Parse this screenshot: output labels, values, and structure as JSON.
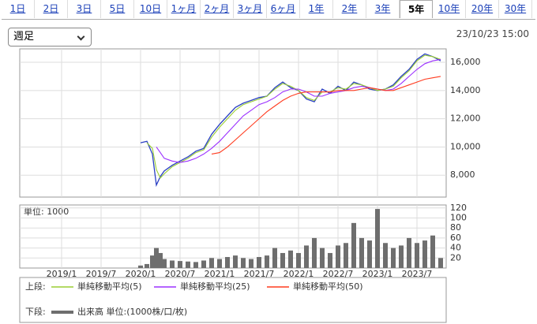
{
  "tabs": [
    "1日",
    "2日",
    "3日",
    "5日",
    "10日",
    "1ヶ月",
    "2ヶ月",
    "3ヶ月",
    "6ヶ月",
    "1年",
    "2年",
    "3年",
    "5年",
    "10年",
    "20年",
    "30年"
  ],
  "selected_tab": 12,
  "dropdown": "週足",
  "timestamp": "23/10/23 15:00",
  "legend": {
    "upper": "上段:",
    "lower": "下段:"
  },
  "chart_data": [
    {
      "type": "line",
      "x": [
        2020.0,
        2020.08,
        2020.15,
        2020.2,
        2020.25,
        2020.3,
        2020.4,
        2020.5,
        2020.6,
        2020.7,
        2020.8,
        2020.9,
        2021.0,
        2021.1,
        2021.2,
        2021.3,
        2021.4,
        2021.5,
        2021.6,
        2021.7,
        2021.8,
        2021.9,
        2022.0,
        2022.1,
        2022.2,
        2022.3,
        2022.4,
        2022.5,
        2022.6,
        2022.7,
        2022.8,
        2022.9,
        2023.0,
        2023.1,
        2023.2,
        2023.3,
        2023.4,
        2023.5,
        2023.6,
        2023.7,
        2023.8
      ],
      "series": [
        {
          "color": "#2a3fc4",
          "values": [
            10300,
            10400,
            9500,
            7300,
            7900,
            8300,
            8700,
            9000,
            9300,
            9700,
            9900,
            10900,
            11600,
            12200,
            12800,
            13100,
            13300,
            13500,
            13600,
            14200,
            14600,
            14200,
            14000,
            13400,
            13200,
            14100,
            13800,
            14300,
            14000,
            14600,
            14400,
            14100,
            14000,
            14100,
            14400,
            15000,
            15500,
            16200,
            16600,
            16400,
            16100
          ]
        },
        {
          "name": "単純移動平均(5)",
          "color": "#9acd32",
          "values": [
            null,
            10300,
            9900,
            8400,
            7800,
            8100,
            8600,
            8900,
            9200,
            9600,
            9800,
            10700,
            11400,
            12000,
            12600,
            13000,
            13200,
            13400,
            13600,
            14100,
            14500,
            14300,
            14000,
            13500,
            13300,
            13900,
            13900,
            14200,
            14100,
            14500,
            14400,
            14200,
            14000,
            14100,
            14300,
            14900,
            15400,
            16100,
            16500,
            16400,
            16200
          ]
        },
        {
          "name": "単純移動平均(25)",
          "color": "#9b30ff",
          "values": [
            null,
            null,
            null,
            10000,
            9600,
            9200,
            9000,
            8900,
            9000,
            9200,
            9500,
            9900,
            10400,
            11000,
            11600,
            12200,
            12600,
            13000,
            13200,
            13500,
            13900,
            14100,
            14100,
            13900,
            13600,
            13600,
            13800,
            13900,
            14000,
            14200,
            14300,
            14200,
            14100,
            14000,
            14100,
            14500,
            15000,
            15500,
            15900,
            16100,
            16200
          ]
        },
        {
          "name": "単純移動平均(50)",
          "color": "#ff3b1f",
          "values": [
            null,
            null,
            null,
            null,
            null,
            null,
            null,
            null,
            null,
            null,
            null,
            9500,
            9600,
            10000,
            10500,
            11000,
            11500,
            12000,
            12500,
            12900,
            13300,
            13600,
            13800,
            13900,
            13900,
            13900,
            13900,
            14000,
            14000,
            14000,
            14100,
            14200,
            14100,
            14000,
            14000,
            14200,
            14400,
            14600,
            14800,
            14900,
            15000
          ]
        }
      ],
      "xlim": [
        2018.47,
        2023.87
      ],
      "ylim": [
        6450,
        16950
      ],
      "yticks": [
        {
          "value": 8000,
          "label": "8,000"
        },
        {
          "value": 10000,
          "label": "10,000"
        },
        {
          "value": 12000,
          "label": "12,000"
        },
        {
          "value": 14000,
          "label": "14,000"
        },
        {
          "value": 16000,
          "label": "16,000"
        }
      ],
      "grid": true
    },
    {
      "type": "bar",
      "unit_label": "単位: 1000",
      "x": [
        2020.0,
        2020.08,
        2020.15,
        2020.2,
        2020.25,
        2020.3,
        2020.4,
        2020.5,
        2020.6,
        2020.7,
        2020.8,
        2020.9,
        2021.0,
        2021.1,
        2021.2,
        2021.3,
        2021.4,
        2021.5,
        2021.6,
        2021.7,
        2021.8,
        2021.9,
        2022.0,
        2022.1,
        2022.2,
        2022.3,
        2022.4,
        2022.5,
        2022.6,
        2022.7,
        2022.8,
        2022.9,
        2023.0,
        2023.1,
        2023.2,
        2023.3,
        2023.4,
        2023.5,
        2023.6,
        2023.7,
        2023.8
      ],
      "series": [
        {
          "name": "出来高 単位:(1000株/口/枚)",
          "color": "#6e6e6e",
          "values": [
            5,
            8,
            25,
            40,
            30,
            18,
            15,
            14,
            13,
            12,
            15,
            20,
            18,
            22,
            25,
            20,
            18,
            22,
            25,
            40,
            30,
            35,
            30,
            45,
            60,
            40,
            30,
            45,
            50,
            90,
            60,
            55,
            118,
            50,
            40,
            45,
            60,
            50,
            55,
            65,
            20
          ]
        }
      ],
      "xlim": [
        2018.47,
        2023.87
      ],
      "ylim": [
        0,
        126
      ],
      "yticks": [
        20,
        40,
        60,
        80,
        100,
        120
      ],
      "xticks": [
        {
          "value": 2019.0,
          "label": "2019/1"
        },
        {
          "value": 2019.5,
          "label": "2019/7"
        },
        {
          "value": 2020.0,
          "label": "2020/1"
        },
        {
          "value": 2020.5,
          "label": "2020/7"
        },
        {
          "value": 2021.0,
          "label": "2021/1"
        },
        {
          "value": 2021.5,
          "label": "2021/7"
        },
        {
          "value": 2022.0,
          "label": "2022/1"
        },
        {
          "value": 2022.5,
          "label": "2022/7"
        },
        {
          "value": 2023.0,
          "label": "2023/1"
        },
        {
          "value": 2023.5,
          "label": "2023/7"
        }
      ],
      "grid": true
    }
  ]
}
